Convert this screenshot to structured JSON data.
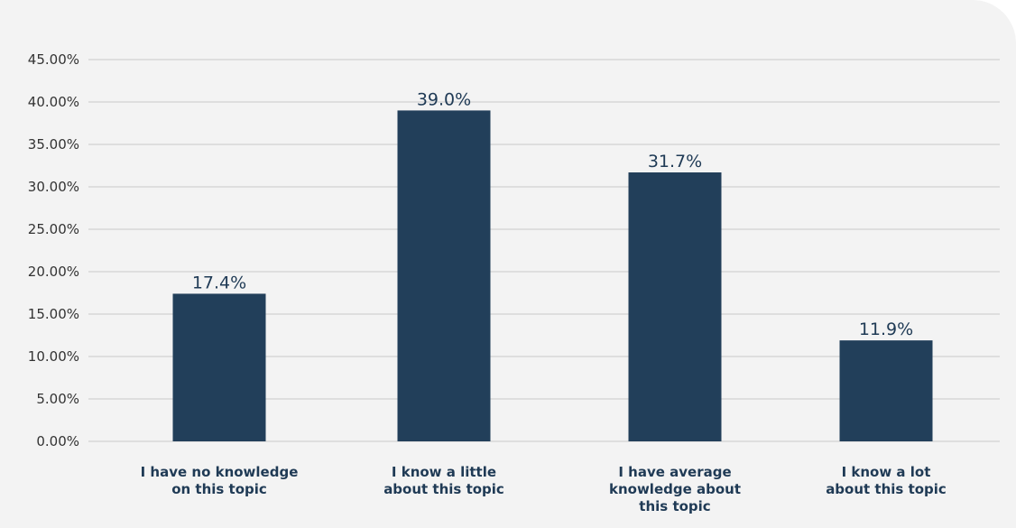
{
  "chart_data": {
    "type": "bar",
    "categories": [
      [
        "I have no knowledge",
        "on this topic"
      ],
      [
        "I know a little",
        "about this topic"
      ],
      [
        "I have average",
        "knowledge about",
        "this topic"
      ],
      [
        "I know a lot",
        "about this topic"
      ]
    ],
    "values": [
      17.4,
      39.0,
      31.7,
      11.9
    ],
    "data_labels": [
      "17.4%",
      "39.0%",
      "31.7%",
      "11.9%"
    ],
    "y_ticks": [
      "0.00%",
      "5.00%",
      "10.00%",
      "15.00%",
      "20.00%",
      "25.00%",
      "30.00%",
      "35.00%",
      "40.00%",
      "45.00%"
    ],
    "ylim": [
      0,
      45
    ],
    "grid": true,
    "colors": {
      "bar": "#223f5a",
      "background": "#f3f3f3",
      "grid": "#c8c8c8",
      "label": "#1f3a55"
    }
  }
}
